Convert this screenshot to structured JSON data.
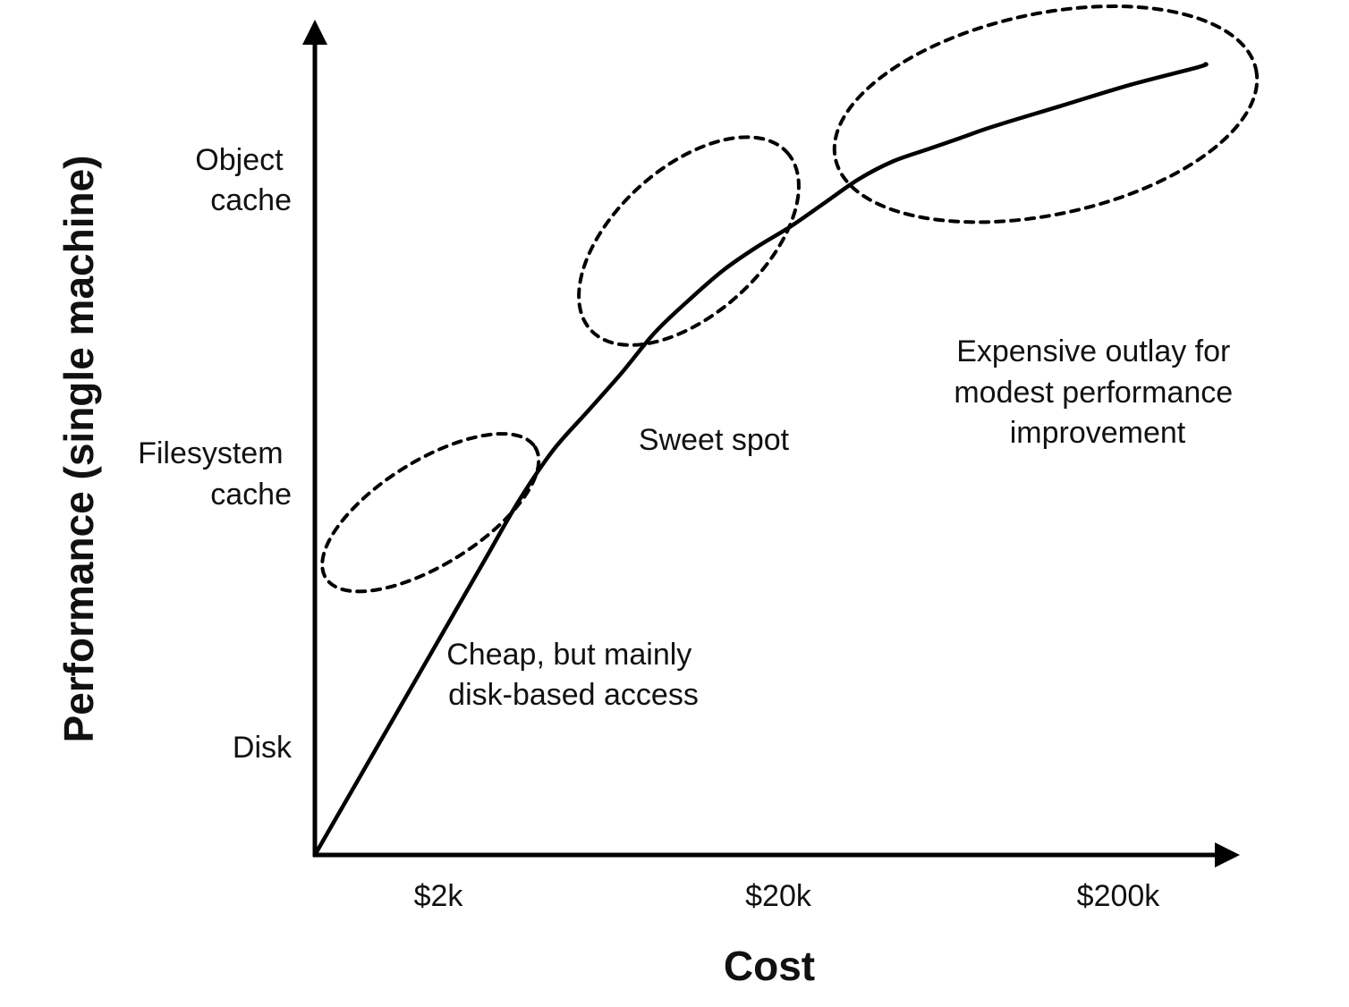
{
  "chart_data": {
    "type": "line",
    "xlabel": "Cost",
    "ylabel": "Performance (single machine)",
    "x_tick_labels": [
      "$2k",
      "$20k",
      "$200k"
    ],
    "y_tick_labels": [
      [
        "Disk"
      ],
      [
        "Filesystem",
        "cache"
      ],
      [
        "Object",
        "cache"
      ]
    ],
    "x_scale": "log",
    "grid": false,
    "series": [
      {
        "x": [
          0,
          0.1,
          0.2,
          0.3,
          0.4,
          0.5,
          0.6,
          0.7,
          0.8,
          0.9,
          1.0,
          1.1,
          1.2,
          1.3,
          1.4,
          1.5,
          1.6,
          1.7,
          1.8,
          1.9,
          2.0,
          2.2,
          2.4,
          2.6,
          2.62
        ],
        "y": [
          0,
          0.2,
          0.4,
          0.6,
          0.8,
          1.0,
          1.2,
          1.37,
          1.5,
          1.63,
          1.77,
          1.88,
          1.98,
          2.06,
          2.13,
          2.21,
          2.29,
          2.35,
          2.39,
          2.43,
          2.47,
          2.54,
          2.61,
          2.67,
          2.68
        ],
        "color": "#000000"
      }
    ],
    "annotations": [
      {
        "text": [
          "Cheap, but mainly",
          "disk-based access"
        ],
        "region": {
          "x_center": 0.34,
          "y_center": 1.16,
          "x_radius": 0.26,
          "y_radius": 0.8
        }
      },
      {
        "text": [
          "Sweet spot"
        ],
        "region": {
          "x_center": 1.1,
          "y_center": 2.08,
          "x_radius": 0.52,
          "y_radius": 0.29
        }
      },
      {
        "text": [
          "Expensive outlay for",
          "modest performance",
          "improvement"
        ],
        "region": {
          "x_center": 2.15,
          "y_center": 2.51,
          "x_radius": 1.22,
          "y_radius": 0.31
        }
      }
    ],
    "line_color": "#000000",
    "annotation_outline": "dotted"
  }
}
